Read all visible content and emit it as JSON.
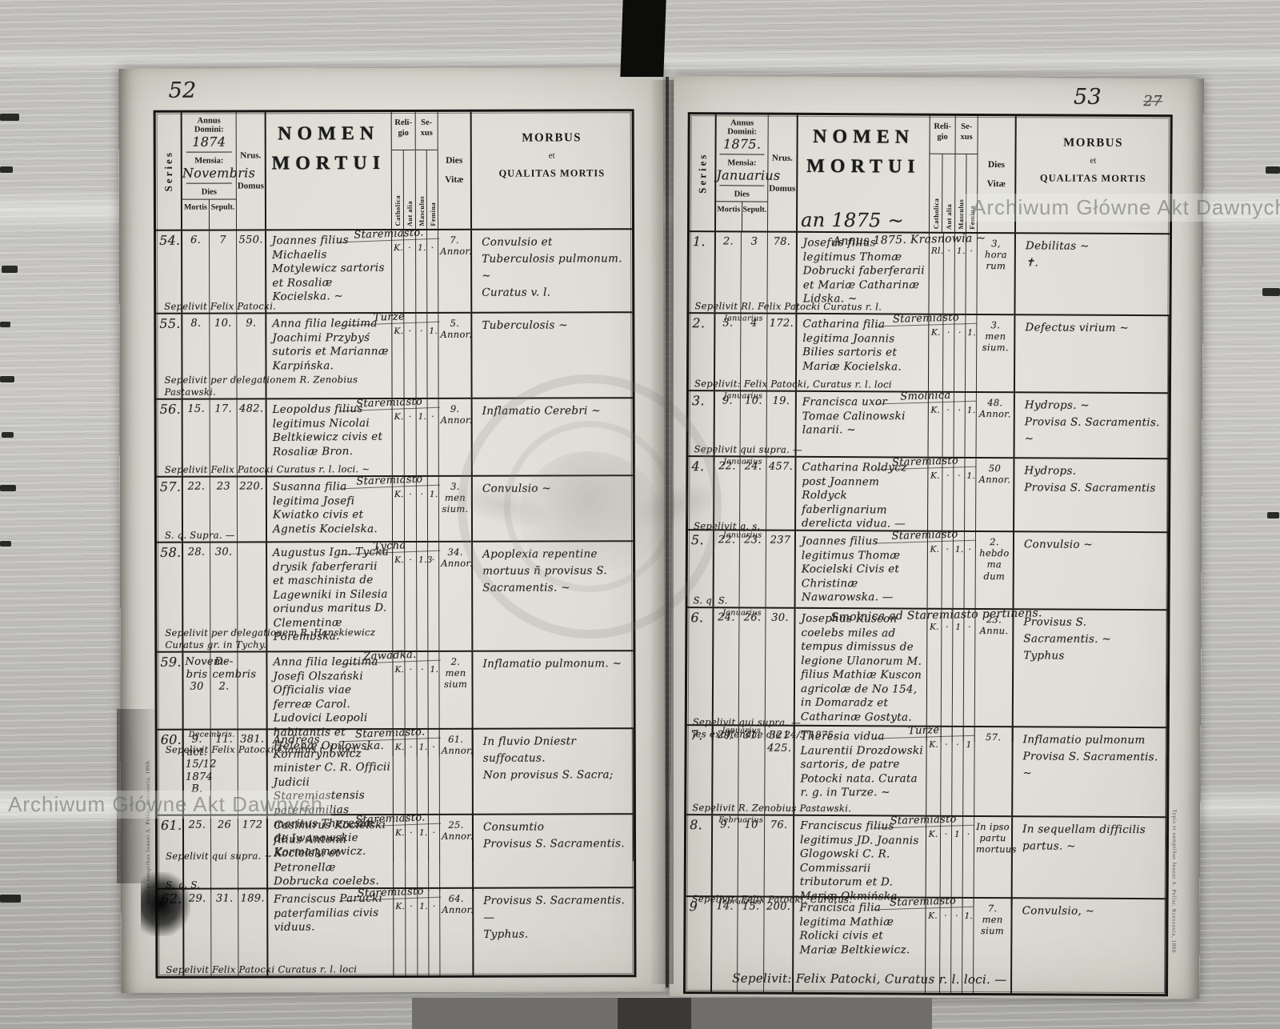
{
  "scan": {
    "watermark": "Archiwum Główne Akt Dawnych",
    "imprint": "Typis et sumptibus Joanni A. Pellar, Rzeszovia, 1860."
  },
  "labels": {
    "series": "Series",
    "annus_domini": "Annus Domini:",
    "mensia": "Mensia:",
    "dies": "Dies",
    "mortis": "Mortis",
    "sepult": "Sepult.",
    "nrus": "Nrus.",
    "domus": "Domus",
    "nomen": "NOMEN",
    "mortui": "MORTUI",
    "religio_1": "Reli-",
    "religio_2": "gio",
    "catholica": "Catholica",
    "aut_alia": "Aut alia",
    "sexus_1": "Se-",
    "sexus_2": "xus",
    "masculus": "Masculus",
    "femina": "Femina",
    "dies_vitae_1": "Dies",
    "dies_vitae_2": "Vitæ",
    "morbus": "MORBUS",
    "et": "et",
    "qualitas": "QUALITAS MORTIS"
  },
  "left_page": {
    "folio": "52",
    "annus": "1874",
    "mensia": "Novembris",
    "nomen_note": "",
    "entries": [
      {
        "series": "54.",
        "mnote": "",
        "mortis": "6.",
        "sepult": "7",
        "domus": "550.",
        "top_note": "",
        "place": "Staremiasto.",
        "name": "Joannes filius Michaelis Motylewicz sartoris et Rosaliæ Kocielska. ~",
        "sepelivit": "Sepelivit Felix Patocki.",
        "rel_c": "K.",
        "rel_a": "·",
        "sx_m": "1.",
        "sx_f": "·",
        "vitae": "7.\nAnnor.",
        "morbus": "Convulsio et Tuberculosis pulmonum. ~\nCuratus v. l."
      },
      {
        "series": "55.",
        "mnote": "",
        "mortis": "8.",
        "sepult": "10.",
        "domus": "9.",
        "top_note": "",
        "place": "Turze",
        "name": "Anna filia legitima Joachimi Przybyś sutoris et Mariannæ Karpińska.",
        "sepelivit": "Sepelivit per delegationem R. Zenobius Pastawski.",
        "rel_c": "K.",
        "rel_a": "·",
        "sx_m": "·",
        "sx_f": "1.",
        "vitae": "5.\nAnnor.",
        "morbus": "Tuberculosis ~"
      },
      {
        "series": "56.",
        "mnote": "",
        "mortis": "15.",
        "sepult": "17.",
        "domus": "482.",
        "top_note": "",
        "place": "Staremiasto",
        "name": "Leopoldus filius legitimus Nicolai Beltkiewicz civis et Rosaliæ Bron.",
        "sepelivit": "Sepelivit Felix Patocki Curatus r. l. loci. ~",
        "rel_c": "K.",
        "rel_a": "·",
        "sx_m": "1.",
        "sx_f": "·",
        "vitae": "9.\nAnnor.",
        "morbus": "Inflamatio Cerebri ~"
      },
      {
        "series": "57.",
        "mnote": "",
        "mortis": "22.",
        "sepult": "23",
        "domus": "220.",
        "top_note": "",
        "place": "Staremiasto",
        "name": "Susanna filia legitima Josefi Kwiatko civis et Agnetis Kocielska.",
        "sepelivit": "S. q. Supra. —",
        "rel_c": "K.",
        "rel_a": "·",
        "sx_m": "·",
        "sx_f": "1.",
        "vitae": "3.\nmen\nsium.",
        "morbus": "Convulsio ~"
      },
      {
        "series": "58.",
        "mnote": "",
        "mortis": "28.",
        "sepult": "30.",
        "domus": "",
        "top_note": "",
        "place": "Tycha",
        "name": "Augustus Ign. Tycka drysik faberferarii et maschinista de Lagewniki in Silesia oriundus maritus D. Clementinæ Porembska.",
        "sepelivit": "Sepelivit per delegationem R. Hanskiewicz Curatus gr. in Tychy.",
        "rel_c": "K.",
        "rel_a": "·",
        "sx_m": "1.3",
        "sx_f": "·",
        "vitae": "34.\nAnnor.",
        "morbus": "Apoplexia repentine mortuus ñ provisus S. Sacramentis. ~"
      },
      {
        "series": "59.",
        "mnote": "",
        "mortis": "Novem-\nbris\n30",
        "sepult": "De-\ncembris\n2.",
        "domus": "",
        "top_note": "",
        "place": "Zawadka.",
        "name": "Anna filia legitima Josefi Olszański Officialis viae ferreæ Carol. Ludovici Leopoli habitantis et Helenæ Opilowska.",
        "sepelivit": "Sepelivit Felix Patocki Curatus r. l. loci. ~",
        "rel_c": "K.",
        "rel_a": "·",
        "sx_m": "·",
        "sx_f": "1.",
        "vitae": "2.\nmen\nsium",
        "morbus": "Inflamatio pulmonum. ~"
      },
      {
        "series": "60.",
        "mnote": "Decembris.",
        "mortis": "9.\nact. 15/12\n1874\nB.",
        "sepult": "11.",
        "domus": "381.",
        "top_note": "",
        "place": "Staremiasto.",
        "name": "Andreas Kormarynowicz minister C. R. Officii Judicii Staremiastensis paterfamilias maritus Theresiæ de Iwanowskie Kormarynowicz.",
        "sepelivit": "Sepelivit qui supra. ~",
        "rel_c": "K.",
        "rel_a": "·",
        "sx_m": "1.",
        "sx_f": "·",
        "vitae": "61.\nAnnor.",
        "morbus": "In fluvio Dniestr suffocatus.\nNon provisus S. Sacra;"
      },
      {
        "series": "61.",
        "mnote": "",
        "mortis": "25.",
        "sepult": "26",
        "domus": "172",
        "top_note": "",
        "place": "Staremiasto.",
        "name": "Casimirus Kocielski filius Antonii Kocielski et Petronellæ Dobrucka coelebs.",
        "sepelivit": "S. q. S.",
        "rel_c": "K.",
        "rel_a": "·",
        "sx_m": "1.",
        "sx_f": "·",
        "vitae": "25.\nAnnor.",
        "morbus": "Consumtio\nProvisus S. Sacramentis."
      },
      {
        "series": "62.",
        "mnote": "",
        "mortis": "29.",
        "sepult": "31.",
        "domus": "189.",
        "top_note": "",
        "place": "Staremiasto",
        "name": "Franciscus Parucki paterfamilias civis viduus.",
        "sepelivit": "Sepelivit Felix Patocki Curatus r. l. loci",
        "rel_c": "K.",
        "rel_a": "·",
        "sx_m": "1.",
        "sx_f": "·",
        "vitae": "64.\nAnnor.",
        "morbus": "Provisus S. Sacramentis. —\nTyphus."
      }
    ]
  },
  "right_page": {
    "folio": "53",
    "folio_strike": "27",
    "annus": "1875.",
    "mensia": "Januarius",
    "nomen_note": "an 1875 ~",
    "bottom_note": "Sepelivit: Felix Patocki, Curatus r. l. loci. —",
    "entries": [
      {
        "series": "1.",
        "mnote": "",
        "mortis": "2.",
        "sepult": "3",
        "domus": "78.",
        "top_note": "Annus 1875. Krasnowia ~",
        "place": "",
        "name": "Josefus filius legitimus Thomæ Dobrucki faberferarii et Mariæ Catharinæ Lidska. ~",
        "sepelivit": "Sepelivit Rl. Felix Patocki Curatus r. l.",
        "rel_c": "Rl.",
        "rel_a": "·",
        "sx_m": "1.",
        "sx_f": "·",
        "vitae": "3,\nhora\nrum",
        "morbus": "Debilitas ~\n✝."
      },
      {
        "series": "2.",
        "mnote": "Januarius",
        "mortis": "3.",
        "sepult": "4",
        "domus": "172.",
        "top_note": "",
        "place": "Staremiasto",
        "name": "Catharina filia legitima Joannis Bilies sartoris et Mariæ Kocielska.",
        "sepelivit": "Sepelivit: Felix Patocki, Curatus r. l. loci",
        "rel_c": "K.",
        "rel_a": "·",
        "sx_m": "·",
        "sx_f": "1.",
        "vitae": "3.\nmen\nsium.",
        "morbus": "Defectus virium ~"
      },
      {
        "series": "3.",
        "mnote": "Januarius",
        "mortis": "9.",
        "sepult": "10.",
        "domus": "19.",
        "top_note": "",
        "place": "Smolnica",
        "name": "Francisca uxor Tomae Calinowski lanarii. ~",
        "sepelivit": "Sepelivit qui supra. —",
        "rel_c": "K.",
        "rel_a": "·",
        "sx_m": "·",
        "sx_f": "1.",
        "vitae": "48.\nAnnor.",
        "morbus": "Hydrops. ~\nProvisa S. Sacramentis. ~"
      },
      {
        "series": "4.",
        "mnote": "Januarius",
        "mortis": "22.",
        "sepult": "24.",
        "domus": "457.",
        "top_note": "",
        "place": "Staremiasto",
        "name": "Catharina Roldycz post Joannem Roldyck faberlignarium derelicta vidua. —",
        "sepelivit": "Sepelivit q. s.",
        "rel_c": "K.",
        "rel_a": "·",
        "sx_m": "·",
        "sx_f": "1.",
        "vitae": "50\nAnnor.",
        "morbus": "Hydrops.\nProvisa S. Sacramentis"
      },
      {
        "series": "5.",
        "mnote": "Januarius",
        "mortis": "22.",
        "sepult": "23.",
        "domus": "237",
        "top_note": "",
        "place": "Staremiasto",
        "name": "Joannes filius legitimus Thomæ Kocielski Civis et Christinæ Nawarowska. —",
        "sepelivit": "S. q. S.",
        "rel_c": "K.",
        "rel_a": "·",
        "sx_m": "1.",
        "sx_f": "·",
        "vitae": "2.\nhebdo\nma\ndum",
        "morbus": "Convulsio ~"
      },
      {
        "series": "6.",
        "mnote": "Januarius",
        "mortis": "24.",
        "sepult": "26.",
        "domus": "30.",
        "top_note": "Smolnica ad Staremiasto pertinens.",
        "place": "",
        "name": "Josephus Kuscon coelebs miles ad tempus dimissus de legione Ulanorum M. filius Mathiæ Kuscon agricolæ de No 154, in Domaradz et Catharinæ Gostyta. —",
        "sepelivit": "Sepelivit qui supra. —\nies exoffendae die 24/3 1875.",
        "rel_c": "K.",
        "rel_a": "·",
        "sx_m": "1",
        "sx_f": "·",
        "vitae": "23.\nAnnu.",
        "morbus": "Provisus S. Sacramentis. ~\nTyphus"
      },
      {
        "series": "7.",
        "mnote": "Januarius",
        "mortis": "29.",
        "sepult": "31.",
        "domus": "321\n425.",
        "top_note": "",
        "place": "Turze",
        "name": "Theresia vidua Laurentii Drozdowski sartoris, de patre Potocki nata. Curata r. g. in Turze. ~",
        "sepelivit": "Sepelivit R. Zenobius Pastawski.",
        "rel_c": "K.",
        "rel_a": "·",
        "sx_m": "·",
        "sx_f": "1",
        "vitae": "57.",
        "morbus": "Inflamatio pulmonum\nProvisa S. Sacramentis. ~"
      },
      {
        "series": "8.",
        "mnote": "Februarius",
        "mortis": "9.",
        "sepult": "10",
        "domus": "76.",
        "top_note": "",
        "place": "Staremiasto",
        "name": "Franciscus filius legitimus JD. Joannis Glogowski C. R. Commissarii tributorum et D. Mariæ Okmińska.",
        "sepelivit": "Sepelivit: Felix Patocki, Curatus.",
        "rel_c": "K.",
        "rel_a": "·",
        "sx_m": "1",
        "sx_f": "·",
        "vitae": "In ipso\npartu\nmortuus",
        "morbus": "In sequellam difficilis partus. ~"
      },
      {
        "series": "9",
        "mnote": "februarius",
        "mortis": "14.",
        "sepult": "15.",
        "domus": "200.",
        "top_note": "",
        "place": "Staremiasto",
        "name": "Francisca filia legitima Mathiæ Rolicki civis et Mariæ Beltkiewicz.",
        "sepelivit": "",
        "rel_c": "K.",
        "rel_a": "·",
        "sx_m": "·",
        "sx_f": "1.",
        "vitae": "7.\nmen\nsium",
        "morbus": "Convulsio, ~"
      }
    ]
  }
}
